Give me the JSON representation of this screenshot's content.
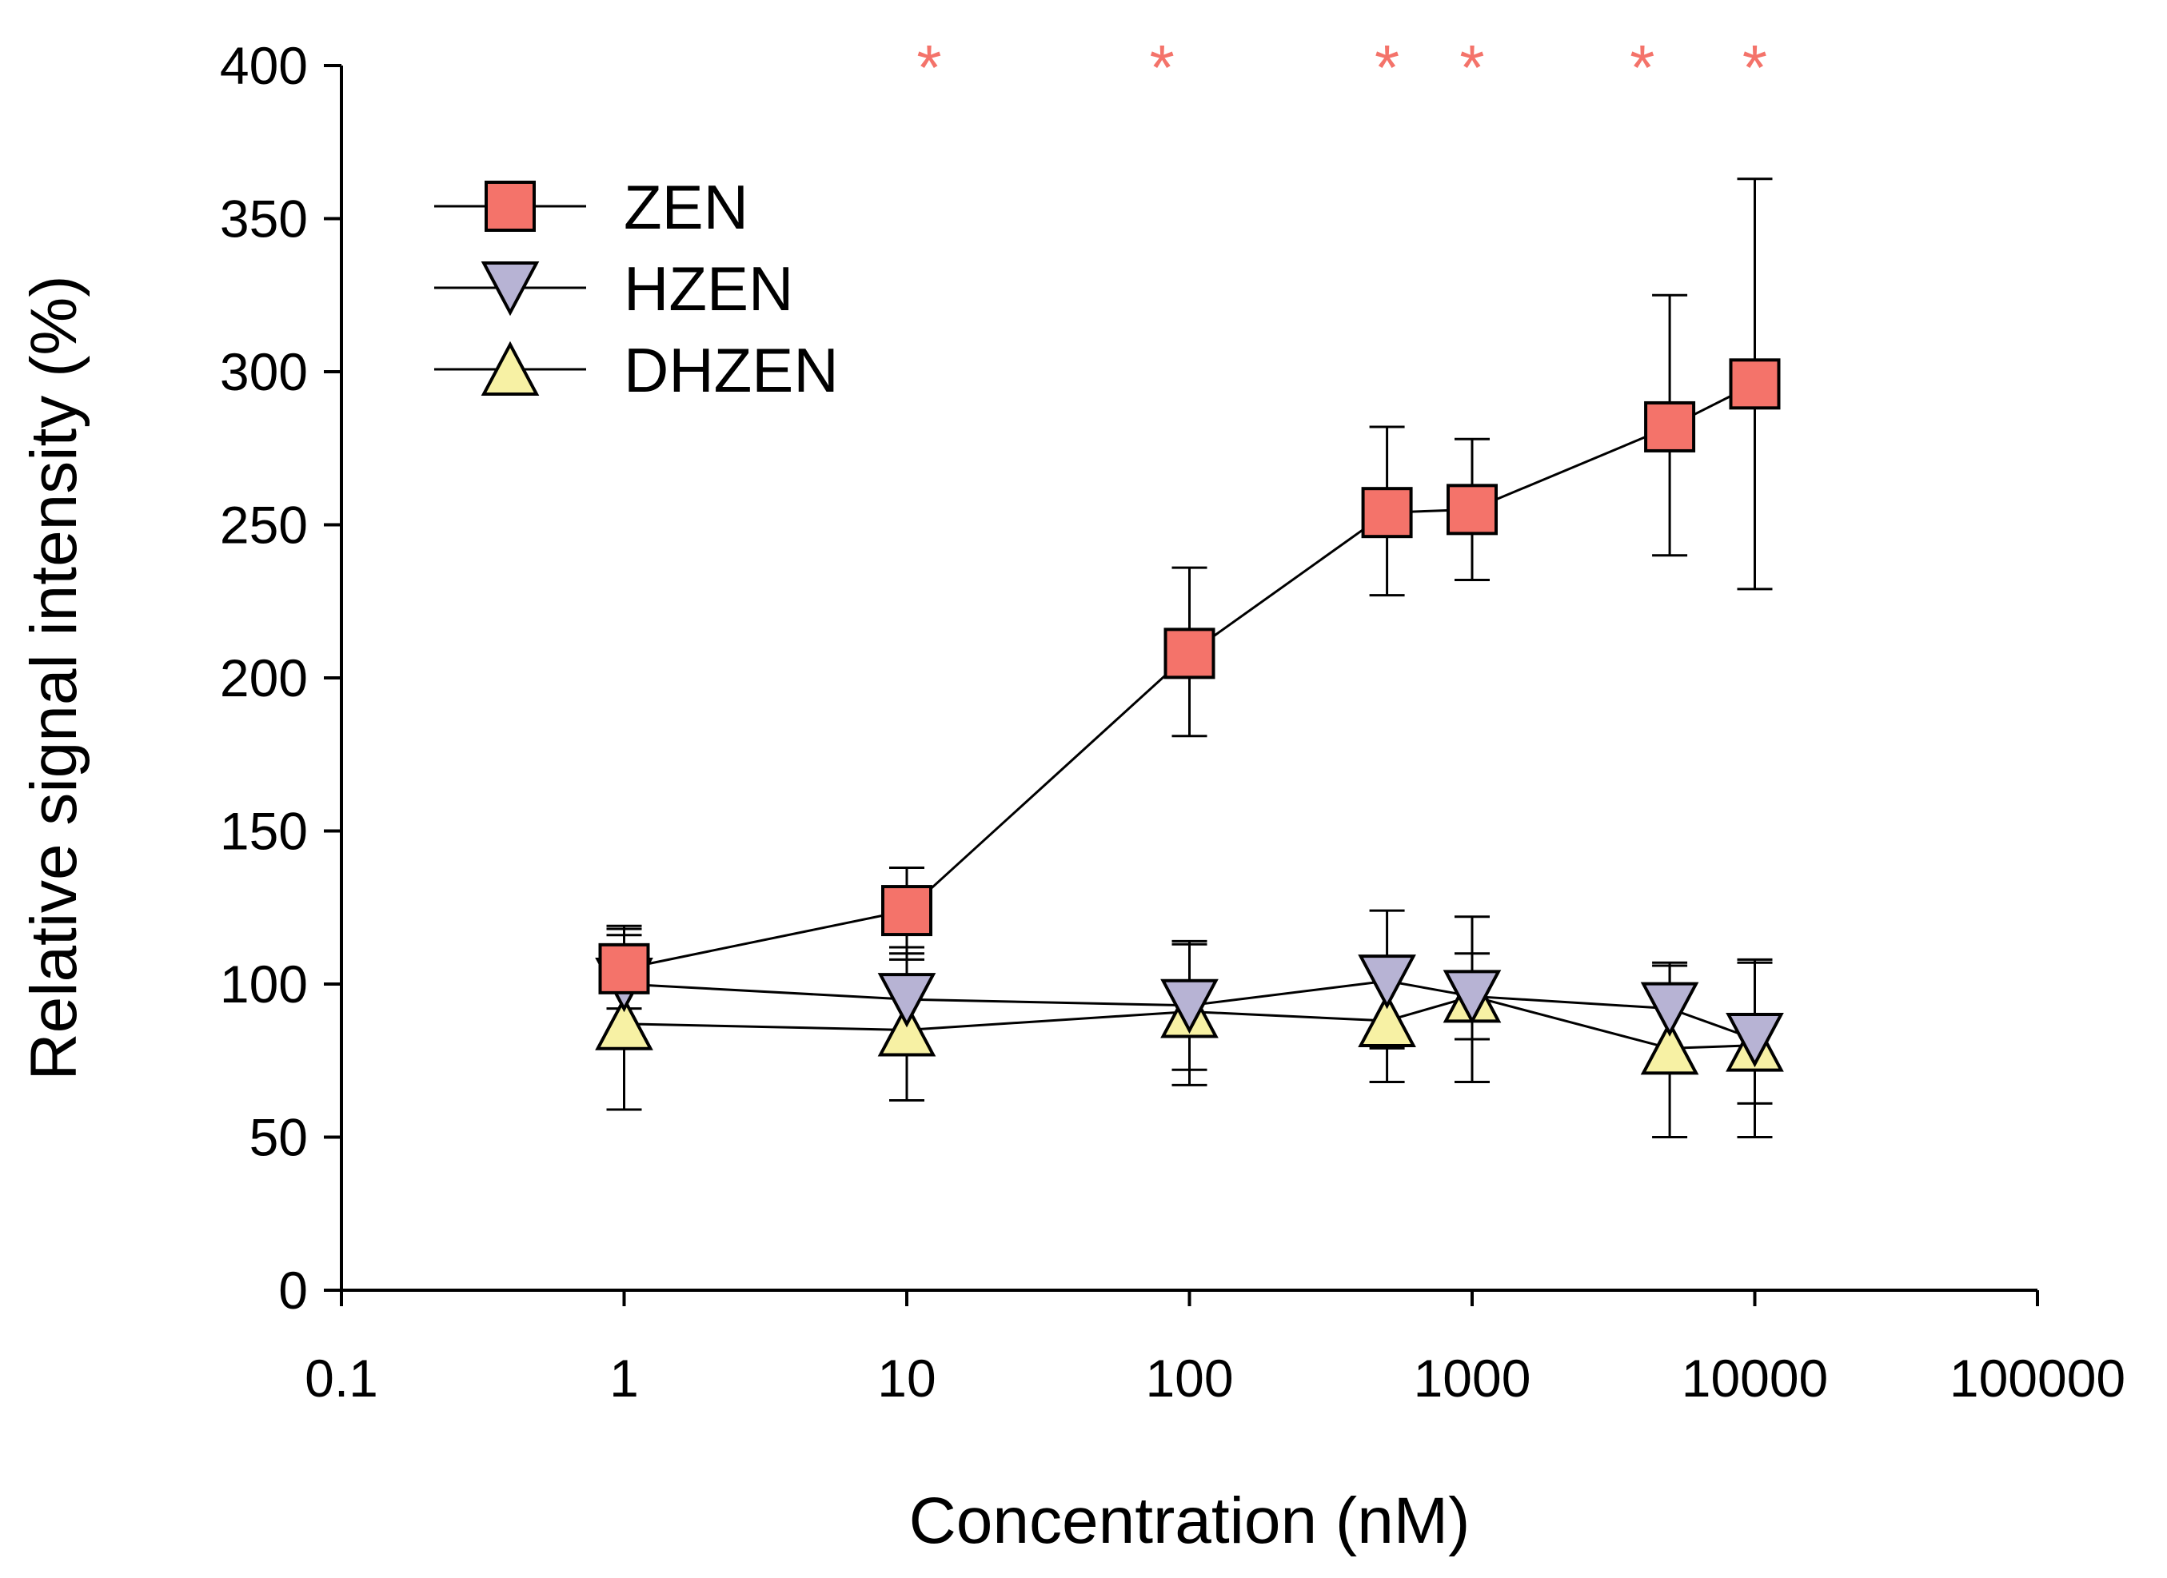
{
  "chart_data": {
    "type": "line",
    "xscale": "log",
    "xlabel": "Concentration (nM)",
    "ylabel": "Relative signal intensity (%)",
    "xlim": [
      0.1,
      100000
    ],
    "ylim": [
      0,
      400
    ],
    "xticks": [
      0.1,
      1,
      10,
      100,
      1000,
      10000,
      100000
    ],
    "xtick_labels": [
      "0.1",
      "1",
      "10",
      "100",
      "1000",
      "10000",
      "100000"
    ],
    "yticks": [
      0,
      50,
      100,
      150,
      200,
      250,
      300,
      350,
      400
    ],
    "ytick_labels": [
      "0",
      "50",
      "100",
      "150",
      "200",
      "250",
      "300",
      "350",
      "400"
    ],
    "legend_position": "top-left",
    "colors": {
      "ZEN": "#f4736a",
      "HZEN": "#b7b3d4",
      "DHZEN": "#f7f1a4",
      "significance": "#f4736a"
    },
    "series": [
      {
        "name": "ZEN",
        "marker": "square",
        "x": [
          1,
          10,
          100,
          500,
          1000,
          5000,
          10000
        ],
        "y": [
          105,
          124,
          208,
          254,
          255,
          282,
          296
        ],
        "err_low": [
          92,
          110,
          181,
          227,
          232,
          240,
          229
        ],
        "err_high": [
          118,
          138,
          236,
          282,
          278,
          325,
          363
        ]
      },
      {
        "name": "HZEN",
        "marker": "triangle-down",
        "x": [
          1,
          10,
          100,
          500,
          1000,
          5000,
          10000
        ],
        "y": [
          100,
          95,
          93,
          101,
          96,
          92,
          82
        ],
        "err_low": [
          85,
          77,
          72,
          79,
          82,
          77,
          61
        ],
        "err_high": [
          116,
          112,
          114,
          124,
          110,
          107,
          108
        ]
      },
      {
        "name": "DHZEN",
        "marker": "triangle-up",
        "x": [
          1,
          10,
          100,
          500,
          1000,
          5000,
          10000
        ],
        "y": [
          87,
          85,
          91,
          88,
          96,
          79,
          80
        ],
        "err_low": [
          59,
          62,
          67,
          68,
          68,
          50,
          50
        ],
        "err_high": [
          119,
          108,
          113,
          107,
          122,
          106,
          107
        ]
      }
    ],
    "significance": {
      "symbol": "*",
      "x": [
        12,
        80,
        500,
        1000,
        4000,
        10000
      ]
    }
  }
}
